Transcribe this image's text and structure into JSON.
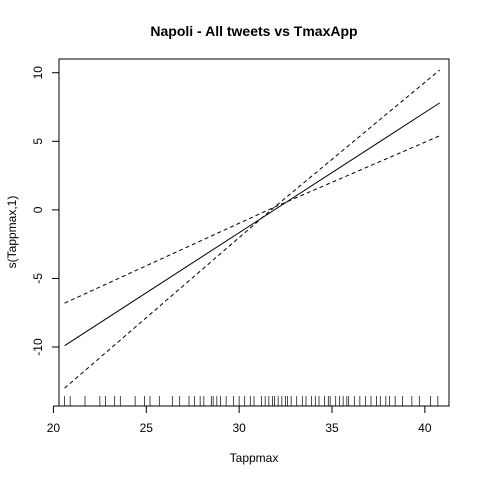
{
  "chart_data": {
    "type": "line",
    "title": "Napoli - All tweets vs TmaxApp",
    "xlabel": "Tappmax",
    "ylabel": "s(Tappmax,1)",
    "xlim": [
      20.3,
      41.3
    ],
    "ylim": [
      -14.3,
      11.0
    ],
    "x_ticks": [
      20,
      25,
      30,
      35,
      40
    ],
    "y_ticks": [
      -10,
      -5,
      0,
      5,
      10
    ],
    "grid": false,
    "legend": "none",
    "series": [
      {
        "style": "solid",
        "points": [
          [
            20.6,
            -9.9
          ],
          [
            40.8,
            7.8
          ]
        ]
      },
      {
        "style": "dashed",
        "points": [
          [
            20.6,
            -6.8
          ],
          [
            31.9,
            0.2
          ],
          [
            40.8,
            5.4
          ]
        ]
      },
      {
        "style": "dashed",
        "points": [
          [
            20.6,
            -13.0
          ],
          [
            31.9,
            0.2
          ],
          [
            40.8,
            10.2
          ]
        ]
      }
    ],
    "rug_x": [
      20.6,
      20.9,
      21.7,
      22.5,
      22.8,
      23.3,
      23.6,
      24.4,
      24.9,
      25.2,
      25.7,
      26.4,
      26.8,
      27.3,
      27.6,
      27.9,
      28.1,
      28.5,
      28.6,
      28.8,
      29.0,
      29.3,
      29.7,
      30.0,
      30.3,
      30.6,
      30.8,
      31.2,
      31.4,
      31.6,
      31.8,
      31.9,
      32.1,
      32.3,
      32.5,
      32.6,
      32.8,
      33.1,
      33.4,
      33.6,
      33.9,
      34.1,
      34.3,
      34.6,
      34.8,
      34.9,
      35.2,
      35.4,
      35.6,
      35.8,
      35.9,
      36.2,
      36.5,
      36.8,
      37.1,
      37.4,
      37.6,
      37.9,
      38.1,
      38.4,
      38.8,
      39.3,
      39.7,
      40.3,
      40.7
    ]
  }
}
